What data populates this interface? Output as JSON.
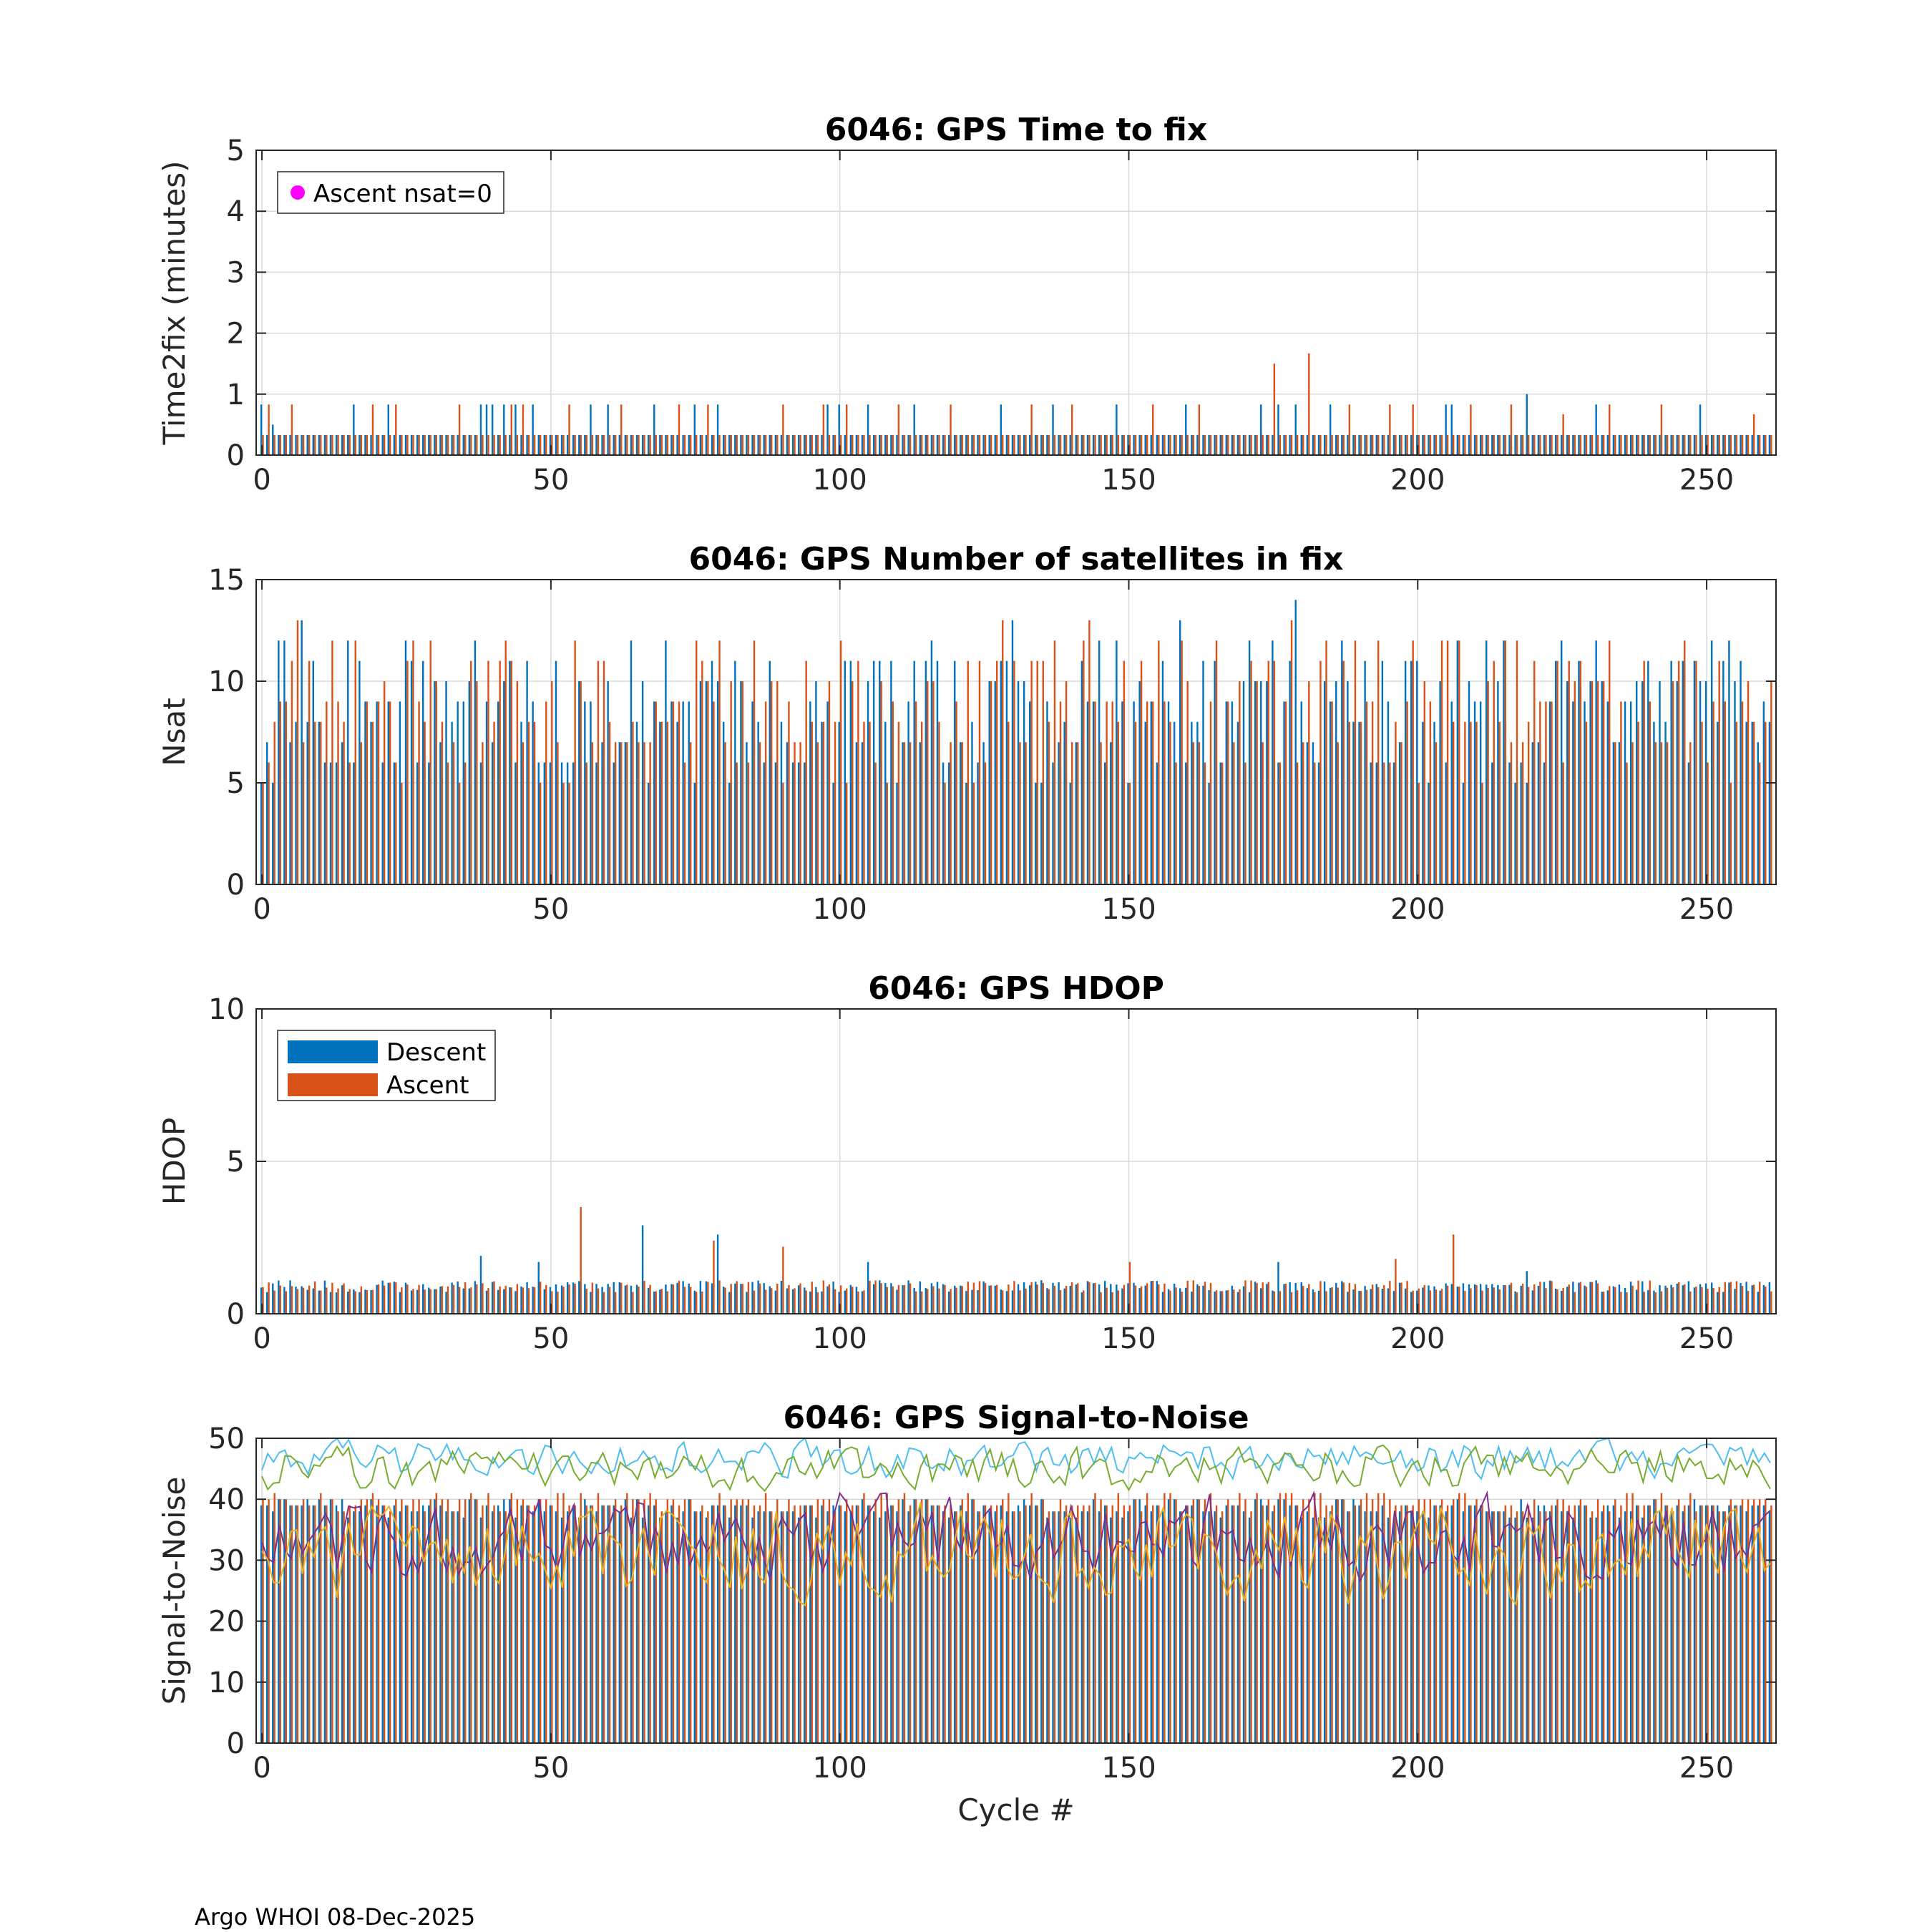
{
  "figure": {
    "footer": "Argo WHOI 08-Dec-2025",
    "colors": {
      "descent": "#0072BD",
      "ascent": "#D95319",
      "magenta": "#FF00FF",
      "snr_cyan": "#4DBEEE",
      "snr_green": "#77AC30",
      "snr_purple": "#7E2F8E",
      "snr_yellow": "#EDB120",
      "grid": "#DADADA"
    }
  },
  "chart_data": [
    {
      "type": "bar",
      "title": "6046: GPS Time to fix",
      "xlabel": "",
      "ylabel": "Time2fix (minutes)",
      "xlim": [
        -1,
        262
      ],
      "ylim": [
        0,
        5
      ],
      "xticks": [
        0,
        50,
        100,
        150,
        200,
        250
      ],
      "yticks": [
        0,
        1,
        2,
        3,
        4,
        5
      ],
      "legend": {
        "position": "top-left",
        "entries": [
          {
            "label": "Ascent nsat=0",
            "marker": "magenta-dot"
          }
        ]
      },
      "x_range": [
        0,
        261
      ],
      "series": [
        {
          "name": "Descent",
          "base": 0.33,
          "spikes": {
            "0": 0.83,
            "2": 0.5,
            "16": 0.83,
            "22": 0.83,
            "38": 0.83,
            "39": 0.83,
            "40": 0.83,
            "42": 0.83,
            "44": 0.83,
            "47": 0.83,
            "57": 0.83,
            "60": 0.83,
            "68": 0.83,
            "75": 0.83,
            "79": 0.83,
            "98": 0.83,
            "100": 0.83,
            "105": 0.83,
            "113": 0.83,
            "128": 0.83,
            "137": 0.83,
            "148": 0.83,
            "160": 0.83,
            "173": 0.83,
            "176": 0.83,
            "179": 0.83,
            "185": 0.83,
            "205": 0.83,
            "206": 0.83,
            "219": 1.0,
            "231": 0.83,
            "249": 0.83
          }
        },
        {
          "name": "Ascent",
          "base": 0.33,
          "spikes": {
            "1": 0.83,
            "5": 0.83,
            "19": 0.83,
            "23": 0.83,
            "34": 0.83,
            "43": 0.83,
            "45": 0.83,
            "53": 0.83,
            "62": 0.83,
            "72": 0.83,
            "77": 0.83,
            "90": 0.83,
            "97": 0.83,
            "101": 0.83,
            "110": 0.83,
            "119": 0.83,
            "133": 0.83,
            "140": 0.83,
            "154": 0.83,
            "162": 0.83,
            "175": 1.5,
            "181": 1.67,
            "188": 0.83,
            "195": 0.83,
            "199": 0.83,
            "209": 0.83,
            "216": 0.83,
            "225": 0.67,
            "233": 0.83,
            "242": 0.83,
            "258": 0.67
          }
        }
      ]
    },
    {
      "type": "bar",
      "title": "6046: GPS Number of satellites in fix",
      "xlabel": "",
      "ylabel": "Nsat",
      "xlim": [
        -1,
        262
      ],
      "ylim": [
        0,
        15
      ],
      "xticks": [
        0,
        50,
        100,
        150,
        200,
        250
      ],
      "yticks": [
        0,
        5,
        10,
        15
      ],
      "x_range": [
        0,
        261
      ],
      "series": [
        {
          "name": "Descent",
          "range": [
            5,
            13
          ],
          "peaks": {
            "7": 13,
            "130": 13,
            "159": 13,
            "179": 14
          }
        },
        {
          "name": "Ascent",
          "range": [
            5,
            13
          ],
          "peaks": {
            "6": 13,
            "128": 13,
            "143": 13,
            "178": 13
          }
        }
      ]
    },
    {
      "type": "bar",
      "title": "6046: GPS HDOP",
      "xlabel": "",
      "ylabel": "HDOP",
      "xlim": [
        -1,
        262
      ],
      "ylim": [
        0,
        10
      ],
      "xticks": [
        0,
        50,
        100,
        150,
        200,
        250
      ],
      "yticks": [
        0,
        5,
        10
      ],
      "legend": {
        "position": "top-left",
        "entries": [
          {
            "label": "Descent",
            "series": "Descent"
          },
          {
            "label": "Ascent",
            "series": "Ascent"
          }
        ]
      },
      "x_range": [
        0,
        261
      ],
      "series": [
        {
          "name": "Descent",
          "range": [
            0.7,
            1.1
          ],
          "peaks": {
            "38": 1.9,
            "48": 1.7,
            "66": 2.9,
            "79": 2.6,
            "105": 1.7,
            "176": 1.7,
            "219": 1.4
          }
        },
        {
          "name": "Ascent",
          "range": [
            0.7,
            1.1
          ],
          "peaks": {
            "55": 3.5,
            "78": 2.4,
            "90": 2.2,
            "150": 1.7,
            "196": 1.8,
            "206": 2.6
          }
        }
      ]
    },
    {
      "type": "bar+line",
      "title": "6046: GPS Signal-to-Noise",
      "xlabel": "Cycle #",
      "ylabel": "Signal-to-Noise",
      "xlim": [
        -1,
        262
      ],
      "ylim": [
        0,
        50
      ],
      "xticks": [
        0,
        50,
        100,
        150,
        200,
        250
      ],
      "yticks": [
        0,
        10,
        20,
        30,
        40,
        50
      ],
      "x_range": [
        0,
        261
      ],
      "series": [
        {
          "name": "Descent",
          "kind": "bar",
          "range": [
            37,
            41
          ]
        },
        {
          "name": "Ascent",
          "kind": "bar",
          "range": [
            38,
            42
          ]
        },
        {
          "name": "snr-cyan",
          "kind": "line",
          "range": [
            43,
            50
          ],
          "mean": 46.5
        },
        {
          "name": "snr-green",
          "kind": "line",
          "range": [
            41,
            49
          ],
          "mean": 45
        },
        {
          "name": "snr-purple",
          "kind": "line",
          "range": [
            25,
            41
          ],
          "mean": 34
        },
        {
          "name": "snr-yellow",
          "kind": "line",
          "range": [
            21,
            40
          ],
          "mean": 31
        }
      ]
    }
  ]
}
